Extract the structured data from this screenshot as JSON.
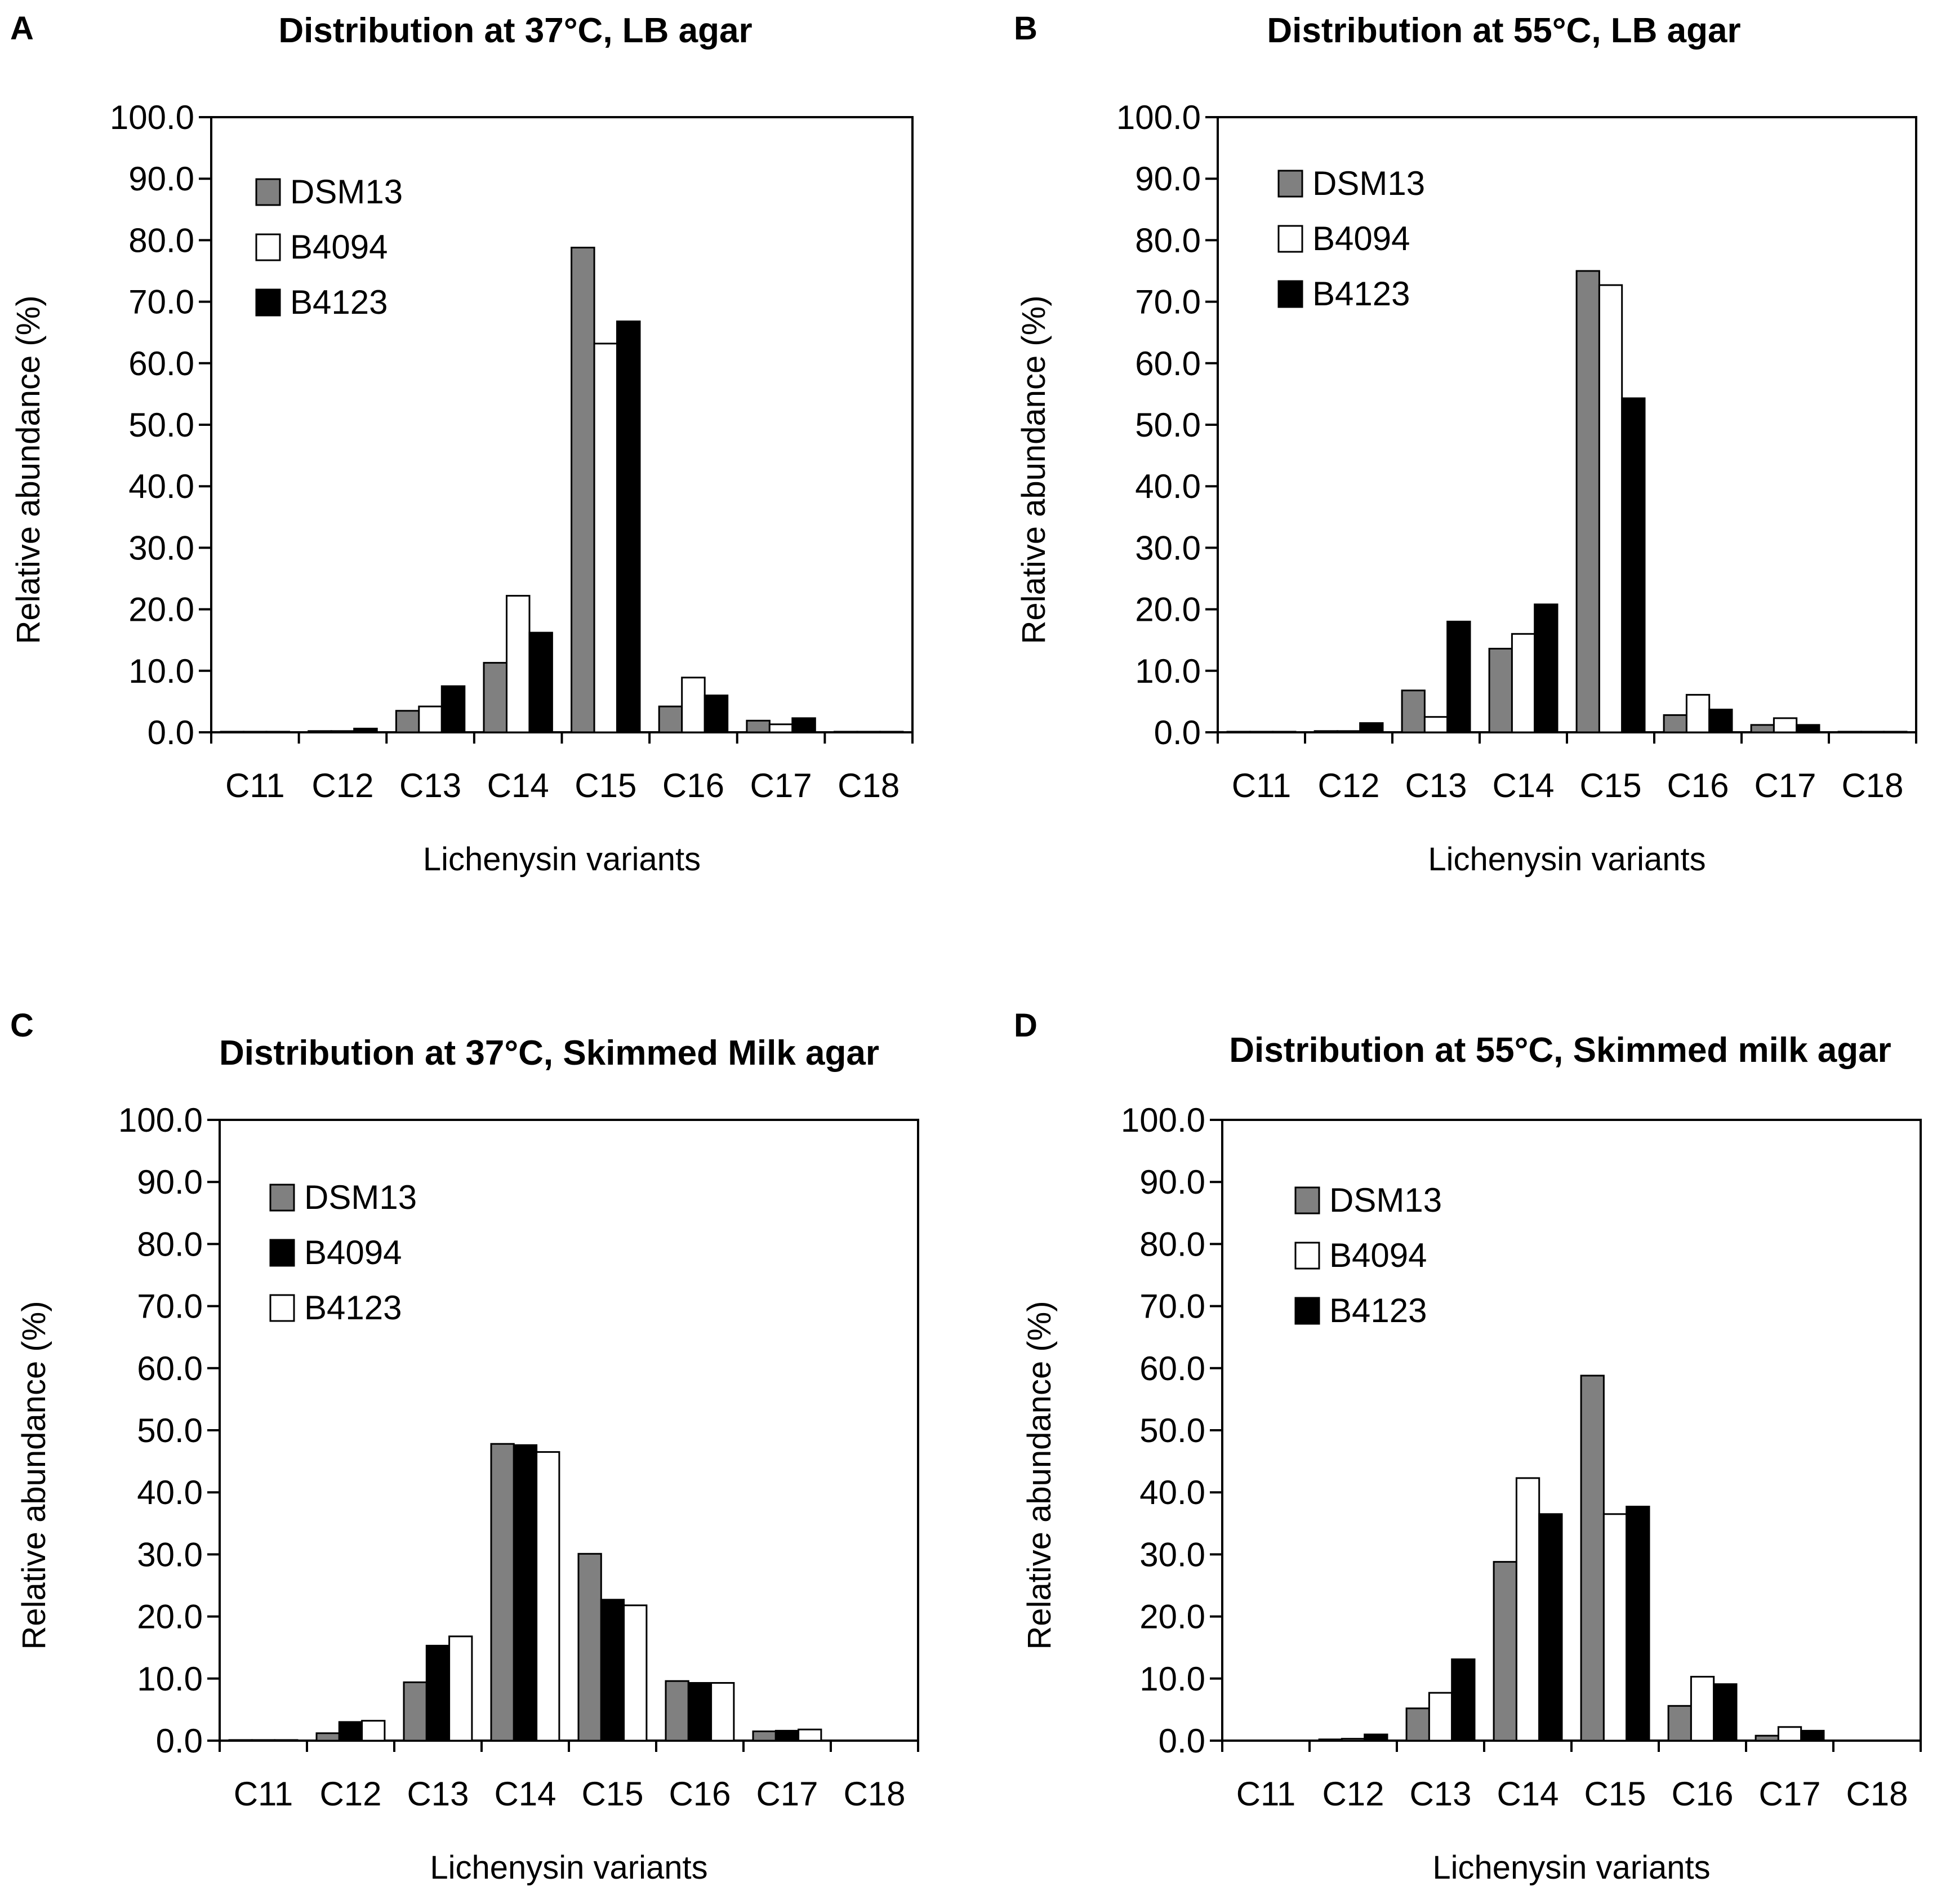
{
  "chart_data": [
    {
      "panel": "A",
      "type": "bar",
      "title": "Distribution at 37°C, LB agar",
      "xlabel": "Lichenysin variants",
      "ylabel": "Relative abundance (%)",
      "ylim": [
        0,
        100
      ],
      "yticks": [
        "0.0",
        "10.0",
        "20.0",
        "30.0",
        "40.0",
        "50.0",
        "60.0",
        "70.0",
        "80.0",
        "90.0",
        "100.0"
      ],
      "grid": false,
      "legend_position": "top-left",
      "categories": [
        "C11",
        "C12",
        "C13",
        "C14",
        "C15",
        "C16",
        "C17",
        "C18"
      ],
      "series": [
        {
          "name": "DSM13",
          "color": "#808080",
          "values": [
            0.1,
            0.2,
            3.5,
            11.3,
            78.8,
            4.2,
            1.9,
            0.1
          ]
        },
        {
          "name": "B4094",
          "color": "#ffffff",
          "values": [
            0.1,
            0.2,
            4.2,
            22.2,
            63.2,
            8.9,
            1.3,
            0.1
          ]
        },
        {
          "name": "B4123",
          "color": "#000000",
          "values": [
            0.1,
            0.6,
            7.5,
            16.2,
            66.8,
            6.0,
            2.3,
            0.1
          ]
        }
      ]
    },
    {
      "panel": "B",
      "type": "bar",
      "title": "Distribution at 55°C, LB agar",
      "xlabel": "Lichenysin variants",
      "ylabel": "Relative abundance (%)",
      "ylim": [
        0,
        100
      ],
      "yticks": [
        "0.0",
        "10.0",
        "20.0",
        "30.0",
        "40.0",
        "50.0",
        "60.0",
        "70.0",
        "80.0",
        "90.0",
        "100.0"
      ],
      "grid": false,
      "legend_position": "top-left",
      "categories": [
        "C11",
        "C12",
        "C13",
        "C14",
        "C15",
        "C16",
        "C17",
        "C18"
      ],
      "series": [
        {
          "name": "DSM13",
          "color": "#808080",
          "values": [
            0.1,
            0.2,
            6.8,
            13.6,
            75.0,
            2.8,
            1.2,
            0.1
          ]
        },
        {
          "name": "B4094",
          "color": "#ffffff",
          "values": [
            0.1,
            0.2,
            2.5,
            16.0,
            72.7,
            6.1,
            2.3,
            0.1
          ]
        },
        {
          "name": "B4123",
          "color": "#000000",
          "values": [
            0.1,
            1.5,
            18.0,
            20.8,
            54.3,
            3.7,
            1.2,
            0.1
          ]
        }
      ]
    },
    {
      "panel": "C",
      "type": "bar",
      "title": "Distribution at 37°C, Skimmed Milk agar",
      "xlabel": "Lichenysin variants",
      "ylabel": "Relative abundance (%)",
      "ylim": [
        0,
        100
      ],
      "yticks": [
        "0.0",
        "10.0",
        "20.0",
        "30.0",
        "40.0",
        "50.0",
        "60.0",
        "70.0",
        "80.0",
        "90.0",
        "100.0"
      ],
      "grid": false,
      "legend_position": "top-left",
      "categories": [
        "C11",
        "C12",
        "C13",
        "C14",
        "C15",
        "C16",
        "C17",
        "C18"
      ],
      "series": [
        {
          "name": "DSM13",
          "color": "#808080",
          "values": [
            0.1,
            1.2,
            9.4,
            47.8,
            30.1,
            9.6,
            1.5,
            0.0
          ]
        },
        {
          "name": "B4094",
          "color": "#000000",
          "values": [
            0.1,
            3.0,
            15.3,
            47.6,
            22.7,
            9.3,
            1.6,
            0.0
          ]
        },
        {
          "name": "B4123",
          "color": "#ffffff",
          "values": [
            0.1,
            3.2,
            16.8,
            46.5,
            21.8,
            9.3,
            1.8,
            0.0
          ]
        }
      ]
    },
    {
      "panel": "D",
      "type": "bar",
      "title": "Distribution at 55°C, Skimmed milk agar",
      "xlabel": "Lichenysin variants",
      "ylabel": "Relative abundance (%)",
      "ylim": [
        0,
        100
      ],
      "yticks": [
        "0.0",
        "10.0",
        "20.0",
        "30.0",
        "40.0",
        "50.0",
        "60.0",
        "70.0",
        "80.0",
        "90.0",
        "100.0"
      ],
      "grid": false,
      "legend_position": "top-left",
      "categories": [
        "C11",
        "C12",
        "C13",
        "C14",
        "C15",
        "C16",
        "C17",
        "C18"
      ],
      "series": [
        {
          "name": "DSM13",
          "color": "#808080",
          "values": [
            0.0,
            0.2,
            5.2,
            28.8,
            58.8,
            5.6,
            0.8,
            0.0
          ]
        },
        {
          "name": "B4094",
          "color": "#ffffff",
          "values": [
            0.0,
            0.3,
            7.7,
            42.3,
            36.5,
            10.3,
            2.2,
            0.0
          ]
        },
        {
          "name": "B4123",
          "color": "#000000",
          "values": [
            0.0,
            1.0,
            13.1,
            36.5,
            37.7,
            9.1,
            1.6,
            0.0
          ]
        }
      ]
    }
  ]
}
